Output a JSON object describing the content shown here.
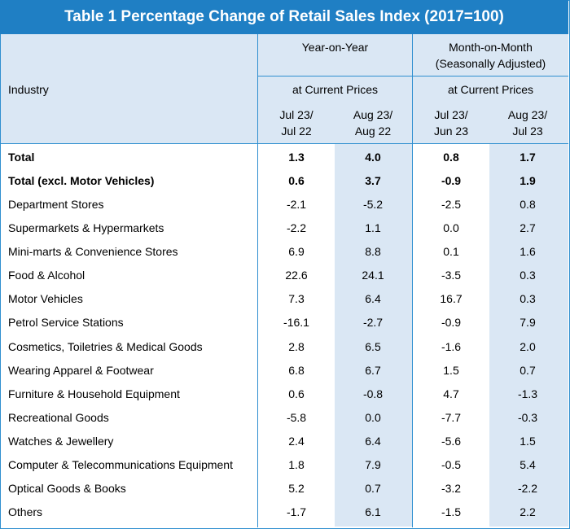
{
  "title": "Table 1 Percentage Change of Retail Sales Index (2017=100)",
  "header": {
    "industry": "Industry",
    "yoy": "Year-on-Year",
    "mom_line1": "Month-on-Month",
    "mom_line2": "(Seasonally Adjusted)",
    "yoy_prices": "at Current Prices",
    "mom_prices": "at Current Prices",
    "c1_l1": "Jul 23/",
    "c1_l2": "Jul 22",
    "c2_l1": "Aug 23/",
    "c2_l2": "Aug 22",
    "c3_l1": "Jul 23/",
    "c3_l2": "Jun 23",
    "c4_l1": "Aug 23/",
    "c4_l2": "Jul 23"
  },
  "rows": [
    {
      "name": "Total",
      "v1": "1.3",
      "v2": "4.0",
      "v3": "0.8",
      "v4": "1.7"
    },
    {
      "name": "Total (excl. Motor Vehicles)",
      "v1": "0.6",
      "v2": "3.7",
      "v3": "-0.9",
      "v4": "1.9"
    },
    {
      "name": "Department Stores",
      "v1": "-2.1",
      "v2": "-5.2",
      "v3": "-2.5",
      "v4": "0.8"
    },
    {
      "name": "Supermarkets & Hypermarkets",
      "v1": "-2.2",
      "v2": "1.1",
      "v3": "0.0",
      "v4": "2.7"
    },
    {
      "name": "Mini-marts & Convenience Stores",
      "v1": "6.9",
      "v2": "8.8",
      "v3": "0.1",
      "v4": "1.6"
    },
    {
      "name": "Food & Alcohol",
      "v1": "22.6",
      "v2": "24.1",
      "v3": "-3.5",
      "v4": "0.3"
    },
    {
      "name": "Motor Vehicles",
      "v1": "7.3",
      "v2": "6.4",
      "v3": "16.7",
      "v4": "0.3"
    },
    {
      "name": "Petrol Service Stations",
      "v1": "-16.1",
      "v2": "-2.7",
      "v3": "-0.9",
      "v4": "7.9"
    },
    {
      "name": "Cosmetics, Toiletries & Medical Goods",
      "v1": "2.8",
      "v2": "6.5",
      "v3": "-1.6",
      "v4": "2.0"
    },
    {
      "name": "Wearing Apparel & Footwear",
      "v1": "6.8",
      "v2": "6.7",
      "v3": "1.5",
      "v4": "0.7"
    },
    {
      "name": "Furniture & Household Equipment",
      "v1": "0.6",
      "v2": "-0.8",
      "v3": "4.7",
      "v4": "-1.3"
    },
    {
      "name": "Recreational Goods",
      "v1": "-5.8",
      "v2": "0.0",
      "v3": "-7.7",
      "v4": "-0.3"
    },
    {
      "name": "Watches & Jewellery",
      "v1": "2.4",
      "v2": "6.4",
      "v3": "-5.6",
      "v4": "1.5"
    },
    {
      "name": "Computer & Telecommunications Equipment",
      "v1": "1.8",
      "v2": "7.9",
      "v3": "-0.5",
      "v4": "5.4"
    },
    {
      "name": "Optical Goods & Books",
      "v1": "5.2",
      "v2": "0.7",
      "v3": "-3.2",
      "v4": "-2.2"
    },
    {
      "name": "Others",
      "v1": "-1.7",
      "v2": "6.1",
      "v3": "-1.5",
      "v4": "2.2"
    }
  ]
}
